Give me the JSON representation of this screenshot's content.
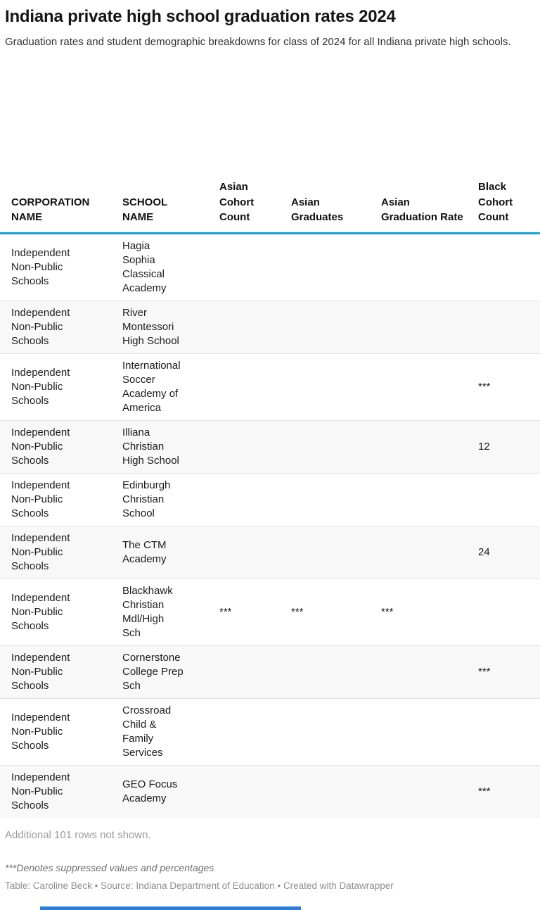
{
  "title": "Indiana private high school graduation rates 2024",
  "subtitle": "Graduation rates and student demographic breakdowns for class of 2024 for all Indiana private high schools.",
  "table": {
    "columns": [
      "CORPORATION NAME",
      "SCHOOL NAME",
      "Asian Cohort Count",
      "Asian Graduates",
      "Asian Graduation Rate",
      "Black Cohort Count"
    ],
    "rows": [
      {
        "corporation": "Independent Non-Public Schools",
        "school": "Hagia Sophia Classical Academy",
        "asian_cohort": "",
        "asian_graduates": "",
        "asian_rate": "",
        "black_cohort": ""
      },
      {
        "corporation": "Independent Non-Public Schools",
        "school": "River Montessori High School",
        "asian_cohort": "",
        "asian_graduates": "",
        "asian_rate": "",
        "black_cohort": ""
      },
      {
        "corporation": "Independent Non-Public Schools",
        "school": "International Soccer Academy of America",
        "asian_cohort": "",
        "asian_graduates": "",
        "asian_rate": "",
        "black_cohort": "***"
      },
      {
        "corporation": "Independent Non-Public Schools",
        "school": "Illiana Christian High School",
        "asian_cohort": "",
        "asian_graduates": "",
        "asian_rate": "",
        "black_cohort": "12"
      },
      {
        "corporation": "Independent Non-Public Schools",
        "school": "Edinburgh Christian School",
        "asian_cohort": "",
        "asian_graduates": "",
        "asian_rate": "",
        "black_cohort": ""
      },
      {
        "corporation": "Independent Non-Public Schools",
        "school": "The CTM Academy",
        "asian_cohort": "",
        "asian_graduates": "",
        "asian_rate": "",
        "black_cohort": "24"
      },
      {
        "corporation": "Independent Non-Public Schools",
        "school": "Blackhawk Christian Mdl/High Sch",
        "asian_cohort": "***",
        "asian_graduates": "***",
        "asian_rate": "***",
        "black_cohort": ""
      },
      {
        "corporation": "Independent Non-Public Schools",
        "school": "Cornerstone College Prep Sch",
        "asian_cohort": "",
        "asian_graduates": "",
        "asian_rate": "",
        "black_cohort": "***"
      },
      {
        "corporation": "Independent Non-Public Schools",
        "school": "Crossroad Child & Family Services",
        "asian_cohort": "",
        "asian_graduates": "",
        "asian_rate": "",
        "black_cohort": ""
      },
      {
        "corporation": "Independent Non-Public Schools",
        "school": "GEO Focus Academy",
        "asian_cohort": "",
        "asian_graduates": "",
        "asian_rate": "",
        "black_cohort": "***"
      }
    ]
  },
  "footer": {
    "rows_note": "Additional 101 rows not shown.",
    "suppressed_note": "***Denotes suppressed values and percentages",
    "attribution": "Table: Caroline Beck • Source: Indiana Department of Education • Created with Datawrapper"
  },
  "colors": {
    "header_rule": "#17a2d2",
    "row_alt_background": "#f8f8f8",
    "bottom_bar": "#2b7cd3"
  }
}
